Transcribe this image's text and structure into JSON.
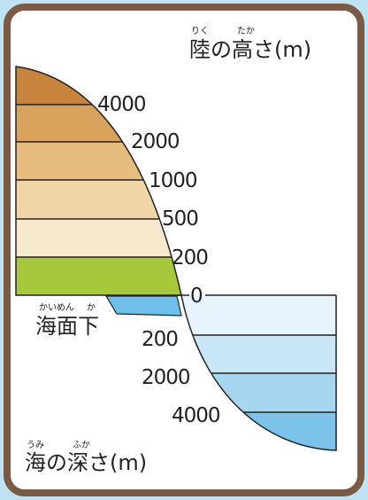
{
  "land_title": {
    "text": "陸の高さ(m)",
    "ruby": [
      "りく",
      "たか"
    ]
  },
  "land_labels": [
    "4000",
    "2000",
    "1000",
    "500",
    "200",
    "0"
  ],
  "below_sea": {
    "text": "海面下",
    "ruby": [
      "かいめん",
      "か"
    ]
  },
  "sea_labels": [
    "200",
    "2000",
    "4000"
  ],
  "sea_title": {
    "text": "海の深さ(m)",
    "ruby": [
      "うみ",
      "ふか"
    ]
  }
}
